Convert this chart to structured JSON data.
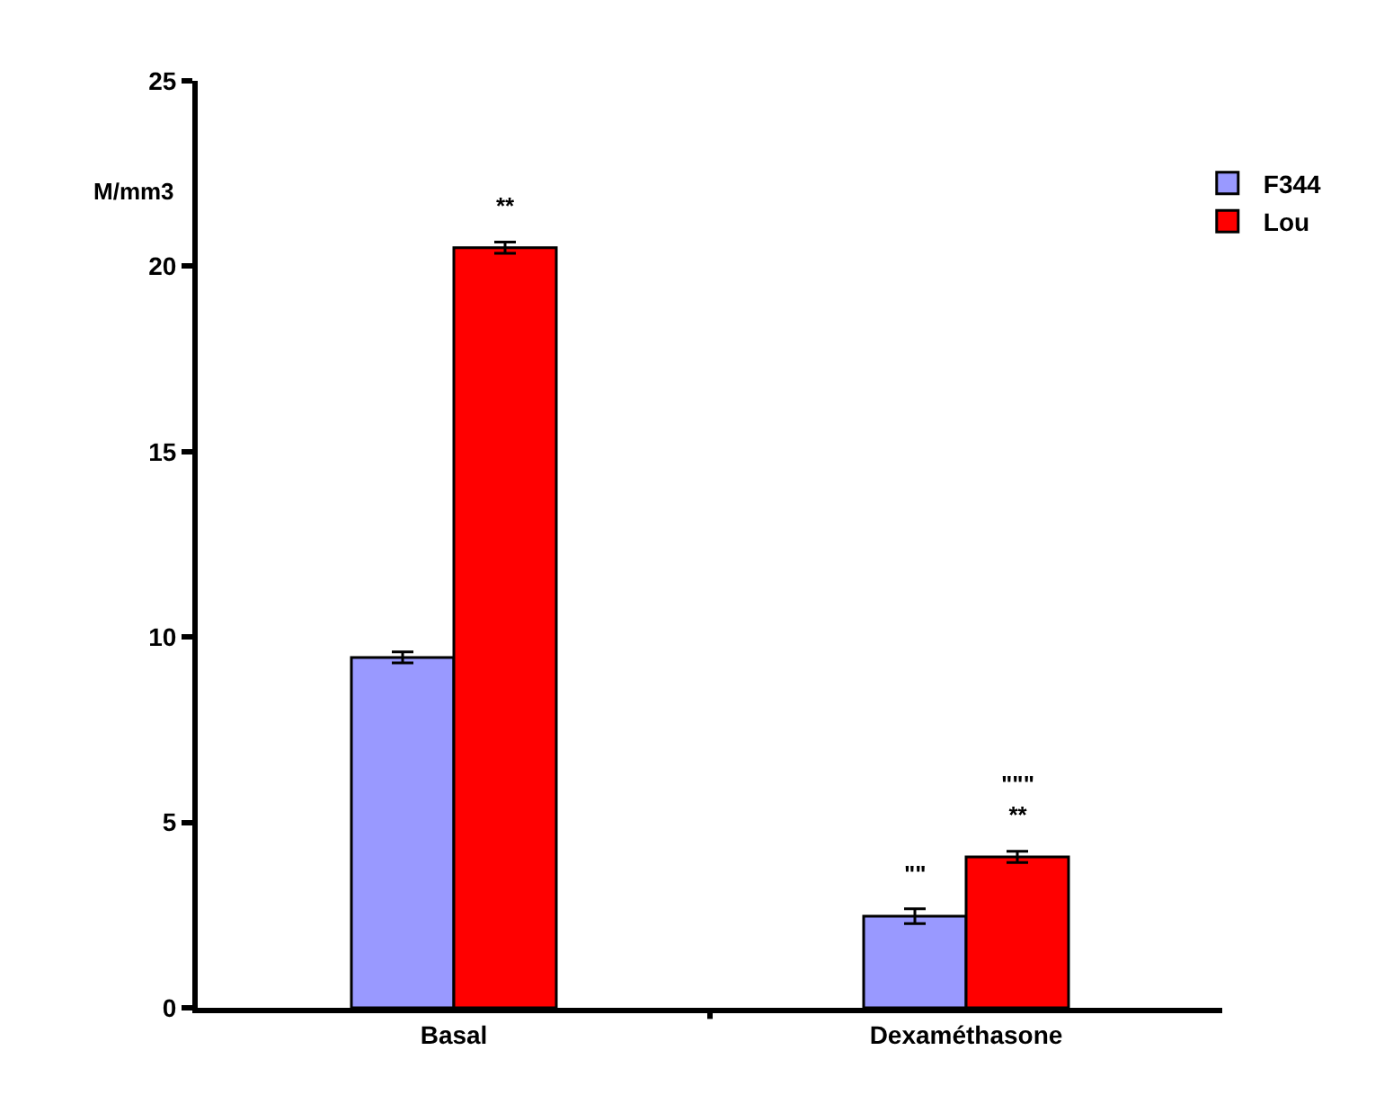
{
  "chart_data": {
    "type": "bar",
    "ylabel": "M/mm3",
    "categories": [
      "Basal",
      "Dexaméthasone"
    ],
    "series": [
      {
        "name": "F344",
        "color": "#9999ff",
        "values": [
          9.45,
          2.47
        ],
        "errors": [
          0.15,
          0.2
        ]
      },
      {
        "name": "Lou",
        "color": "#ff0000",
        "values": [
          20.5,
          4.07
        ],
        "errors": [
          0.15,
          0.15
        ]
      }
    ],
    "ylim": [
      0,
      25
    ],
    "yticks": [
      0,
      5,
      10,
      15,
      20,
      25
    ],
    "legend": "top right",
    "annotations": [
      {
        "text": "**",
        "x": "Basal",
        "y": 20.5
      },
      {
        "text": "\"\"",
        "x": "Dexaméthasone",
        "y": 2.47
      },
      {
        "text": "\"\"\"\n**",
        "x": "Dexaméthasone",
        "y": 4.07
      }
    ]
  }
}
